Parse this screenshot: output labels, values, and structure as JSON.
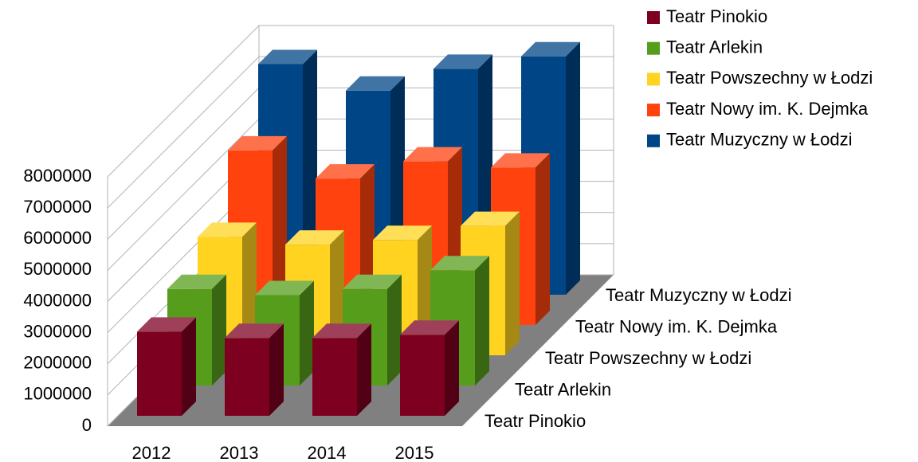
{
  "chart_data": {
    "type": "bar3d",
    "categories": [
      "2012",
      "2013",
      "2014",
      "2015"
    ],
    "series": [
      {
        "name": "Teatr Pinokio",
        "color": "#7e0021",
        "values": [
          2700000,
          2500000,
          2500000,
          2600000
        ]
      },
      {
        "name": "Teatr Arlekin",
        "color": "#579d1c",
        "values": [
          3100000,
          2900000,
          3100000,
          3700000
        ]
      },
      {
        "name": "Teatr Powszechny w Łodzi",
        "color": "#ffd320",
        "values": [
          3800000,
          3550000,
          3700000,
          4150000
        ]
      },
      {
        "name": "Teatr Nowy im. K. Dejmka",
        "color": "#ff420e",
        "values": [
          5600000,
          4700000,
          5250000,
          5050000
        ]
      },
      {
        "name": "Teatr Muzyczny w Łodzi",
        "color": "#004586",
        "values": [
          7400000,
          6550000,
          7250000,
          7650000
        ]
      }
    ],
    "ylim": [
      0,
      8000000
    ],
    "yticks": [
      0,
      1000000,
      2000000,
      3000000,
      4000000,
      5000000,
      6000000,
      7000000,
      8000000
    ],
    "grid": true,
    "legend": "top-right"
  }
}
